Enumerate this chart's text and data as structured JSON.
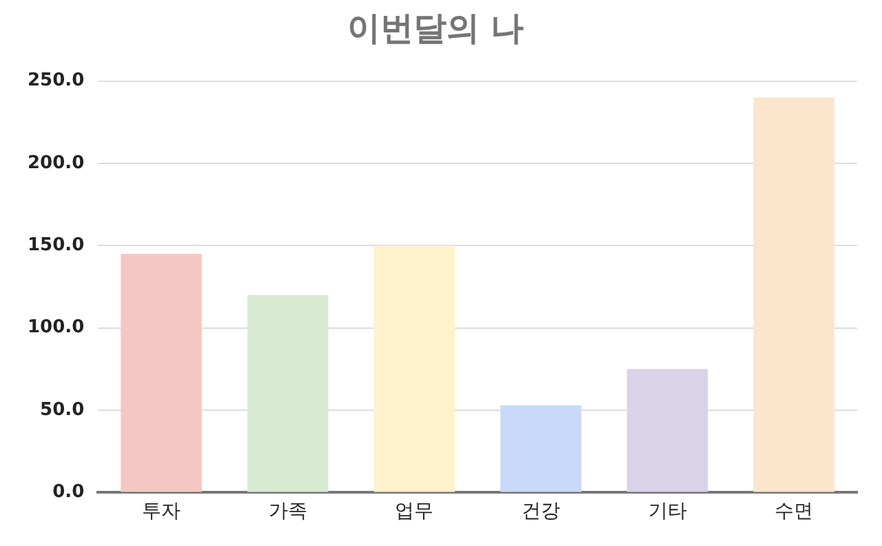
{
  "chart_data": {
    "type": "bar",
    "title": "이번달의 나",
    "categories": [
      "투자",
      "가족",
      "업무",
      "건강",
      "기타",
      "수면"
    ],
    "values": [
      145,
      120,
      150,
      53,
      75,
      240
    ],
    "colors": [
      "#f4c7c3",
      "#d9ead3",
      "#fff2cc",
      "#c9daf8",
      "#d9d2e9",
      "#fce5cd"
    ],
    "ylim": [
      0,
      250
    ],
    "yticks": [
      {
        "value": 0,
        "label": "0.0"
      },
      {
        "value": 50,
        "label": "50.0"
      },
      {
        "value": 100,
        "label": "100.0"
      },
      {
        "value": 150,
        "label": "150.0"
      },
      {
        "value": 200,
        "label": "200.0"
      },
      {
        "value": 250,
        "label": "250.0"
      }
    ],
    "grid": "y",
    "legend": false
  }
}
